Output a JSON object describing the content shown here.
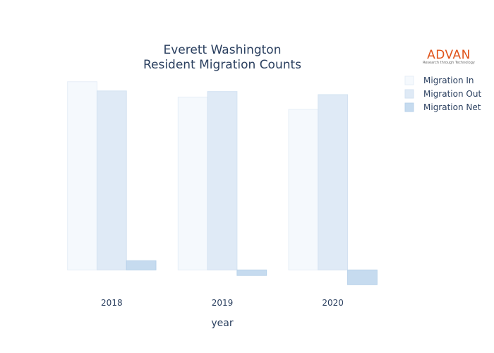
{
  "chart_data": {
    "type": "bar",
    "title": [
      "Everett Washington",
      "Resident Migration Counts"
    ],
    "xlabel": "year",
    "ylabel": "",
    "categories": [
      "2018",
      "2019",
      "2020"
    ],
    "series": [
      {
        "name": "Migration In",
        "values": [
          1530,
          1405,
          1305
        ],
        "color": "#f5f9fd",
        "stroke": "#e6eef7"
      },
      {
        "name": "Migration Out",
        "values": [
          1455,
          1450,
          1425
        ],
        "color": "#dfeaf6",
        "stroke": "#d3e2f1"
      },
      {
        "name": "Migration Net",
        "values": [
          75,
          -45,
          -120
        ],
        "color": "#c6dbef",
        "stroke": "#b8d2ea"
      }
    ],
    "ylim": [
      -130,
      1540
    ],
    "grid": false,
    "legend_position": "top-right"
  },
  "logo": {
    "name": "ADVAN",
    "tagline": "Research through Technology",
    "color": "#e0541b"
  }
}
